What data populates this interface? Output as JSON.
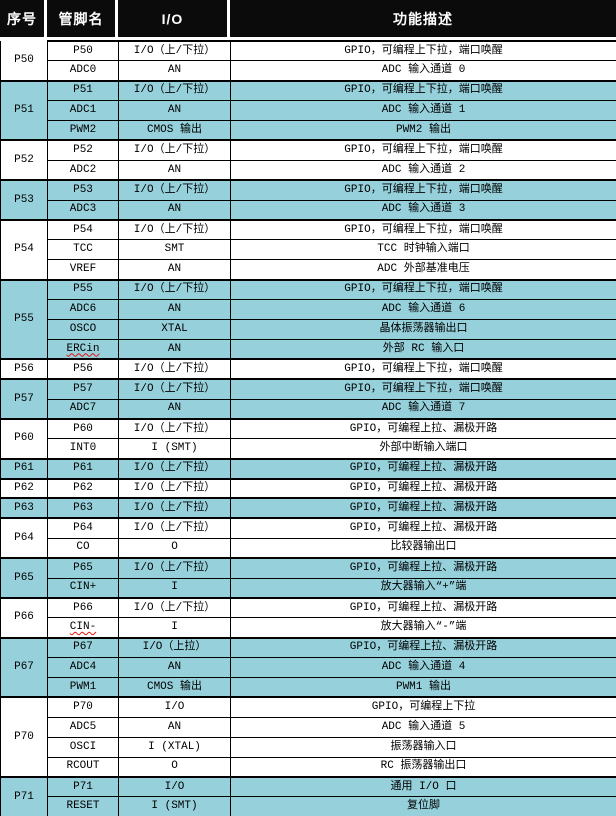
{
  "table": {
    "columns": [
      "序号",
      "管脚名",
      "I/O",
      "功能描述"
    ],
    "colors": {
      "header_bg": "#0b0b0b",
      "header_text": "#ffffff",
      "group_highlight_bg": "#95d0db",
      "group_normal_bg": "#ffffff",
      "grid_border": "#000000",
      "spellcheck_underline": "#ee1111"
    },
    "groups": [
      {
        "id": "P50",
        "highlight": false,
        "pins": [
          {
            "name": "P50",
            "io": "I/O（上/下拉）",
            "desc": "GPIO，可编程上下拉，端口唤醒"
          },
          {
            "name": "ADC0",
            "io": "AN",
            "desc": "ADC 输入通道 0"
          }
        ]
      },
      {
        "id": "P51",
        "highlight": true,
        "pins": [
          {
            "name": "P51",
            "io": "I/O（上/下拉）",
            "desc": "GPIO，可编程上下拉，端口唤醒"
          },
          {
            "name": "ADC1",
            "io": "AN",
            "desc": "ADC 输入通道 1"
          },
          {
            "name": "PWM2",
            "io": "CMOS 输出",
            "desc": "PWM2 输出"
          }
        ]
      },
      {
        "id": "P52",
        "highlight": false,
        "pins": [
          {
            "name": "P52",
            "io": "I/O（上/下拉）",
            "desc": "GPIO，可编程上下拉，端口唤醒"
          },
          {
            "name": "ADC2",
            "io": "AN",
            "desc": "ADC 输入通道 2"
          }
        ]
      },
      {
        "id": "P53",
        "highlight": true,
        "pins": [
          {
            "name": "P53",
            "io": "I/O（上/下拉）",
            "desc": "GPIO，可编程上下拉，端口唤醒"
          },
          {
            "name": "ADC3",
            "io": "AN",
            "desc": "ADC 输入通道 3"
          }
        ]
      },
      {
        "id": "P54",
        "highlight": false,
        "pins": [
          {
            "name": "P54",
            "io": "I/O（上/下拉）",
            "desc": "GPIO，可编程上下拉，端口唤醒"
          },
          {
            "name": "TCC",
            "io": "SMT",
            "desc": "TCC 时钟输入端口"
          },
          {
            "name": "VREF",
            "io": "AN",
            "desc": "ADC 外部基准电压"
          }
        ]
      },
      {
        "id": "P55",
        "highlight": true,
        "pins": [
          {
            "name": "P55",
            "io": "I/O（上/下拉）",
            "desc": "GPIO，可编程上下拉，端口唤醒"
          },
          {
            "name": "ADC6",
            "io": "AN",
            "desc": "ADC 输入通道 6"
          },
          {
            "name": "OSCO",
            "io": "XTAL",
            "desc": "晶体振荡器输出口"
          },
          {
            "name": "ERCin",
            "io": "AN",
            "desc": "外部 RC 输入口",
            "squiggle": true
          }
        ]
      },
      {
        "id": "P56",
        "highlight": false,
        "pins": [
          {
            "name": "P56",
            "io": "I/O（上/下拉）",
            "desc": "GPIO，可编程上下拉，端口唤醒"
          }
        ]
      },
      {
        "id": "P57",
        "highlight": true,
        "pins": [
          {
            "name": "P57",
            "io": "I/O（上/下拉）",
            "desc": "GPIO，可编程上下拉，端口唤醒"
          },
          {
            "name": "ADC7",
            "io": "AN",
            "desc": "ADC 输入通道 7"
          }
        ]
      },
      {
        "id": "P60",
        "highlight": false,
        "pins": [
          {
            "name": "P60",
            "io": "I/O（上/下拉）",
            "desc": "GPIO，可编程上拉、漏极开路"
          },
          {
            "name": "INT0",
            "io": "I (SMT)",
            "desc": "外部中断输入端口"
          }
        ]
      },
      {
        "id": "P61",
        "highlight": true,
        "pins": [
          {
            "name": "P61",
            "io": "I/O（上/下拉）",
            "desc": "GPIO，可编程上拉、漏极开路"
          }
        ]
      },
      {
        "id": "P62",
        "highlight": false,
        "pins": [
          {
            "name": "P62",
            "io": "I/O（上/下拉）",
            "desc": "GPIO，可编程上拉、漏极开路"
          }
        ]
      },
      {
        "id": "P63",
        "highlight": true,
        "pins": [
          {
            "name": "P63",
            "io": "I/O（上/下拉）",
            "desc": "GPIO，可编程上拉、漏极开路"
          }
        ]
      },
      {
        "id": "P64",
        "highlight": false,
        "pins": [
          {
            "name": "P64",
            "io": "I/O（上/下拉）",
            "desc": "GPIO，可编程上拉、漏极开路"
          },
          {
            "name": "CO",
            "io": "O",
            "desc": "比较器输出口"
          }
        ]
      },
      {
        "id": "P65",
        "highlight": true,
        "pins": [
          {
            "name": "P65",
            "io": "I/O（上/下拉）",
            "desc": "GPIO，可编程上拉、漏极开路"
          },
          {
            "name": "CIN+",
            "io": "I",
            "desc": "放大器输入“+”端"
          }
        ]
      },
      {
        "id": "P66",
        "highlight": false,
        "pins": [
          {
            "name": "P66",
            "io": "I/O（上/下拉）",
            "desc": "GPIO，可编程上拉、漏极开路"
          },
          {
            "name": "CIN-",
            "io": "I",
            "desc": "放大器输入“-”端",
            "squiggle": true
          }
        ]
      },
      {
        "id": "P67",
        "highlight": true,
        "pins": [
          {
            "name": "P67",
            "io": "I/O（上拉）",
            "desc": "GPIO，可编程上拉、漏极开路"
          },
          {
            "name": "ADC4",
            "io": "AN",
            "desc": "ADC 输入通道 4"
          },
          {
            "name": "PWM1",
            "io": "CMOS 输出",
            "desc": "PWM1 输出"
          }
        ]
      },
      {
        "id": "P70",
        "highlight": false,
        "pins": [
          {
            "name": "P70",
            "io": "I/O",
            "desc": "GPIO，可编程上下拉"
          },
          {
            "name": "ADC5",
            "io": "AN",
            "desc": "ADC 输入通道 5"
          },
          {
            "name": "OSCI",
            "io": "I (XTAL)",
            "desc": "振荡器输入口"
          },
          {
            "name": "RCOUT",
            "io": "O",
            "desc": "RC 振荡器输出口"
          }
        ]
      },
      {
        "id": "P71",
        "highlight": true,
        "pins": [
          {
            "name": "P71",
            "io": "I/O",
            "desc": "通用 I/O 口"
          },
          {
            "name": "RESET",
            "io": "I (SMT)",
            "desc": "复位脚"
          }
        ]
      }
    ]
  }
}
